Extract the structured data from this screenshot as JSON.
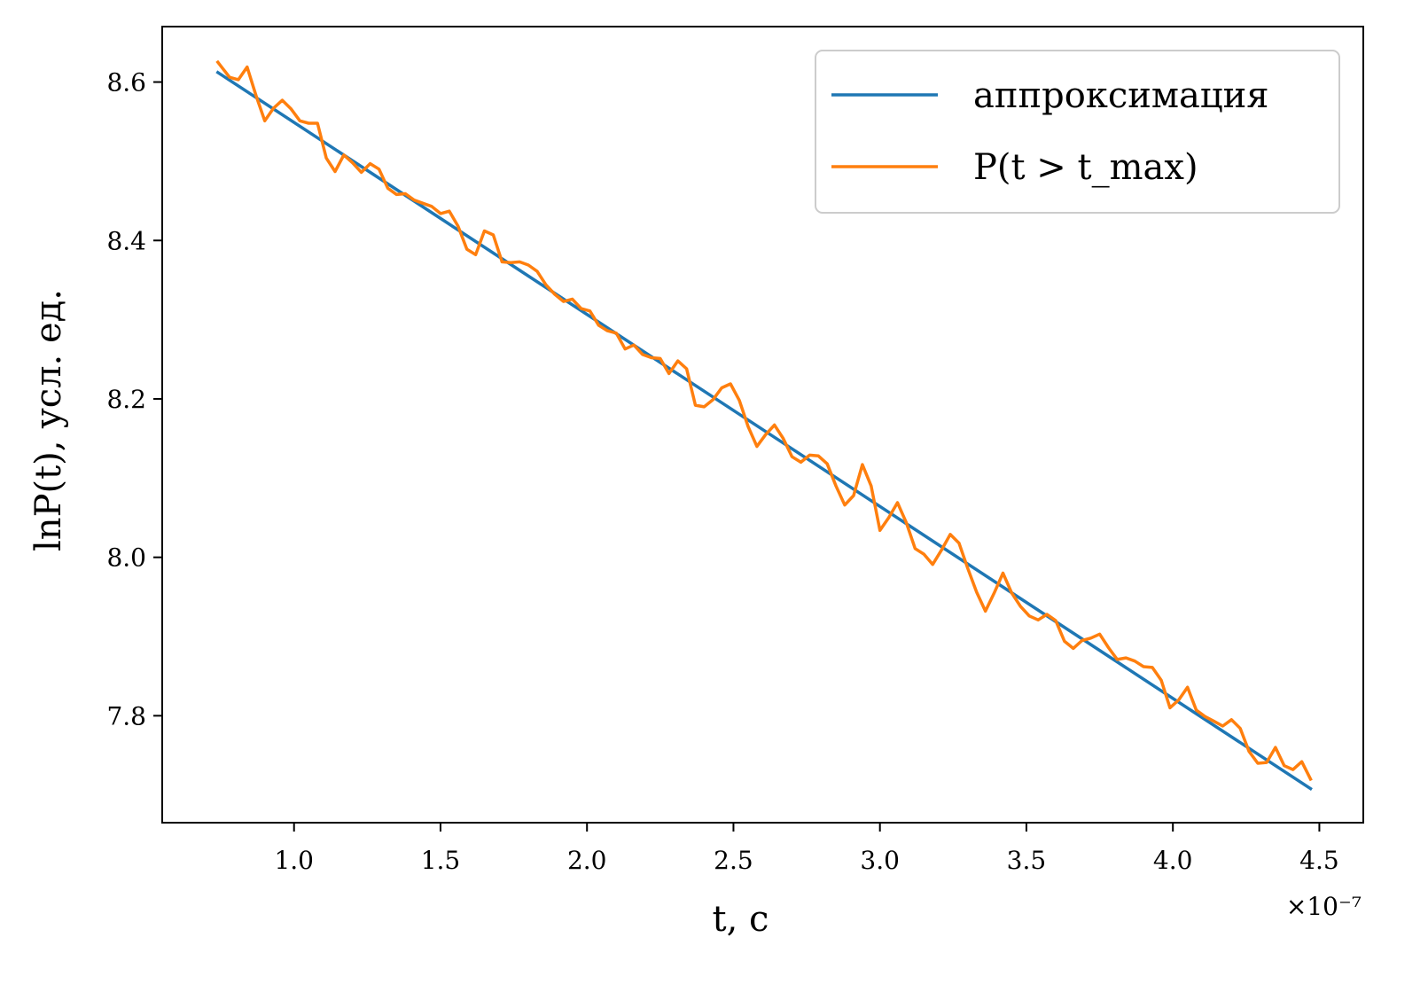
{
  "chart_data": {
    "type": "line",
    "xlabel": "t, с",
    "ylabel": "lnP(t), усл. ед.",
    "x_multiplier_label": "×10⁻⁷",
    "xlim": [
      0.55,
      4.65
    ],
    "ylim": [
      7.665,
      8.67
    ],
    "x_ticks": [
      1.0,
      1.5,
      2.0,
      2.5,
      3.0,
      3.5,
      4.0,
      4.5
    ],
    "x_tick_labels": [
      "1.0",
      "1.5",
      "2.0",
      "2.5",
      "3.0",
      "3.5",
      "4.0",
      "4.5"
    ],
    "y_ticks": [
      7.8,
      8.0,
      8.2,
      8.4,
      8.6
    ],
    "y_tick_labels": [
      "7.8",
      "8.0",
      "8.2",
      "8.4",
      "8.6"
    ],
    "grid": false,
    "legend_position": "top-right",
    "series": [
      {
        "name": "аппроксимация",
        "color": "#1f77b4",
        "x": [
          0.74,
          4.47
        ],
        "y": [
          8.612,
          7.708
        ]
      },
      {
        "name": "P(t > t_max)",
        "color": "#ff7f0e",
        "x": [
          0.74,
          0.78,
          0.81,
          0.84,
          0.87,
          0.9,
          0.93,
          0.96,
          0.99,
          1.02,
          1.05,
          1.08,
          1.11,
          1.14,
          1.17,
          1.2,
          1.23,
          1.26,
          1.29,
          1.32,
          1.35,
          1.38,
          1.41,
          1.44,
          1.47,
          1.5,
          1.53,
          1.56,
          1.59,
          1.62,
          1.65,
          1.68,
          1.71,
          1.74,
          1.77,
          1.8,
          1.83,
          1.86,
          1.89,
          1.92,
          1.95,
          1.98,
          2.01,
          2.04,
          2.07,
          2.1,
          2.13,
          2.16,
          2.19,
          2.22,
          2.25,
          2.28,
          2.31,
          2.34,
          2.37,
          2.4,
          2.43,
          2.46,
          2.49,
          2.52,
          2.55,
          2.58,
          2.61,
          2.64,
          2.67,
          2.7,
          2.73,
          2.76,
          2.79,
          2.82,
          2.85,
          2.88,
          2.91,
          2.94,
          2.97,
          3.0,
          3.03,
          3.06,
          3.09,
          3.12,
          3.15,
          3.18,
          3.21,
          3.24,
          3.27,
          3.3,
          3.33,
          3.36,
          3.39,
          3.42,
          3.45,
          3.48,
          3.51,
          3.54,
          3.57,
          3.6,
          3.63,
          3.66,
          3.69,
          3.72,
          3.75,
          3.78,
          3.81,
          3.84,
          3.87,
          3.9,
          3.93,
          3.96,
          3.99,
          4.02,
          4.05,
          4.08,
          4.11,
          4.14,
          4.17,
          4.2,
          4.23,
          4.26,
          4.29,
          4.32,
          4.35,
          4.38,
          4.41,
          4.44,
          4.47
        ],
        "y": [
          8.625,
          8.606,
          8.603,
          8.619,
          8.583,
          8.551,
          8.567,
          8.577,
          8.566,
          8.551,
          8.548,
          8.548,
          8.504,
          8.487,
          8.508,
          8.498,
          8.486,
          8.497,
          8.49,
          8.466,
          8.458,
          8.459,
          8.451,
          8.447,
          8.443,
          8.434,
          8.437,
          8.418,
          8.389,
          8.382,
          8.412,
          8.407,
          8.373,
          8.372,
          8.373,
          8.369,
          8.361,
          8.344,
          8.332,
          8.323,
          8.326,
          8.314,
          8.311,
          8.293,
          8.286,
          8.283,
          8.263,
          8.268,
          8.256,
          8.252,
          8.251,
          8.232,
          8.248,
          8.238,
          8.192,
          8.19,
          8.199,
          8.214,
          8.219,
          8.198,
          8.165,
          8.14,
          8.155,
          8.167,
          8.15,
          8.127,
          8.12,
          8.129,
          8.128,
          8.118,
          8.09,
          8.066,
          8.078,
          8.117,
          8.09,
          8.034,
          8.05,
          8.069,
          8.044,
          8.011,
          8.004,
          7.991,
          8.009,
          8.029,
          8.018,
          7.986,
          7.956,
          7.932,
          7.955,
          7.98,
          7.955,
          7.938,
          7.926,
          7.921,
          7.928,
          7.92,
          7.894,
          7.885,
          7.895,
          7.898,
          7.903,
          7.886,
          7.871,
          7.873,
          7.869,
          7.862,
          7.861,
          7.845,
          7.81,
          7.82,
          7.836,
          7.807,
          7.799,
          7.793,
          7.787,
          7.795,
          7.784,
          7.755,
          7.74,
          7.741,
          7.76,
          7.737,
          7.732,
          7.742,
          7.72
        ]
      }
    ]
  }
}
